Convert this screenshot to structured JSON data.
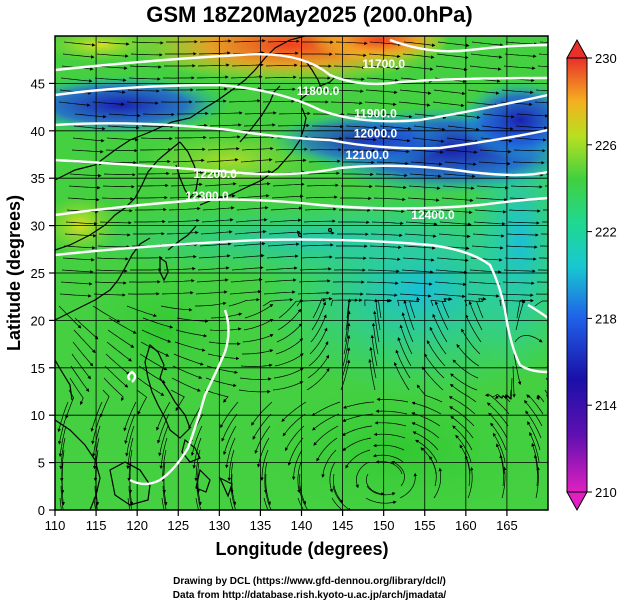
{
  "title": "GSM 18Z20May2025 (200.0hPa)",
  "xlabel": "Longitude (degrees)",
  "ylabel": "Latitude  (degrees)",
  "x_ticks": [
    "110",
    "115",
    "120",
    "125",
    "130",
    "135",
    "140",
    "145",
    "150",
    "155",
    "160",
    "165"
  ],
  "y_ticks": [
    "0",
    "5",
    "10",
    "15",
    "20",
    "25",
    "30",
    "35",
    "40",
    "45"
  ],
  "colorbar_ticks": [
    "230",
    "226",
    "222",
    "218",
    "214",
    "210"
  ],
  "contour_labels": [
    {
      "text": "11700.0",
      "lon": 150,
      "lat": 46.6
    },
    {
      "text": "11800.0",
      "lon": 142,
      "lat": 43.8
    },
    {
      "text": "11900.0",
      "lon": 149,
      "lat": 41.4
    },
    {
      "text": "12000.0",
      "lon": 149,
      "lat": 39.3
    },
    {
      "text": "12100.0",
      "lon": 148,
      "lat": 37.0
    },
    {
      "text": "12200.0",
      "lon": 129.5,
      "lat": 35.0
    },
    {
      "text": "12300.0",
      "lon": 128.5,
      "lat": 32.7
    },
    {
      "text": "12400.0",
      "lon": 156,
      "lat": 30.7
    }
  ],
  "credits": {
    "line1": "Drawing by DCL (https://www.gfd-dennou.org/library/dcl/)",
    "line2": "Data from http://database.rish.kyoto-u.ac.jp/arch/jmadata/"
  },
  "colors": {
    "red": "#e8302a",
    "orange": "#f59a23",
    "yellow": "#f0e020",
    "green": "#40d040",
    "cyan": "#18c8d0",
    "blue": "#2050e0",
    "darkblue": "#1a10a8",
    "magenta": "#e020c0"
  }
}
